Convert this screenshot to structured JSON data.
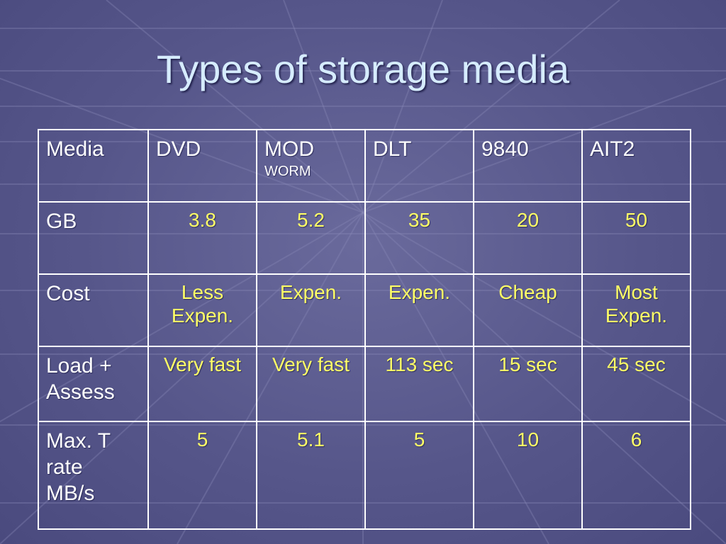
{
  "slide": {
    "title": "Types of storage media"
  },
  "table": {
    "header": {
      "media_label": "Media",
      "dvd": "DVD",
      "mod": "MOD",
      "mod_sub": "WORM",
      "dlt": "DLT",
      "t9840": "9840",
      "ait2": "AIT2"
    },
    "rows": [
      {
        "label": "GB",
        "values": [
          "3.8",
          "5.2",
          "35",
          "20",
          "50"
        ]
      },
      {
        "label": "Cost",
        "values": [
          "Less\nExpen.",
          "Expen.",
          "Expen.",
          "Cheap",
          "Most\nExpen."
        ]
      },
      {
        "label": "Load +\nAssess",
        "values": [
          "Very fast",
          "Very fast",
          "113 sec",
          "15 sec",
          "45 sec"
        ]
      },
      {
        "label": "Max. T\nrate\nMB/s",
        "values": [
          "5",
          "5.1",
          "5",
          "10",
          "6"
        ]
      }
    ]
  },
  "colors": {
    "background": "#56568a",
    "title_text": "#d6ecff",
    "header_text": "#ffffff",
    "value_text": "#ffff66",
    "grid_lines": "#ffffff"
  }
}
